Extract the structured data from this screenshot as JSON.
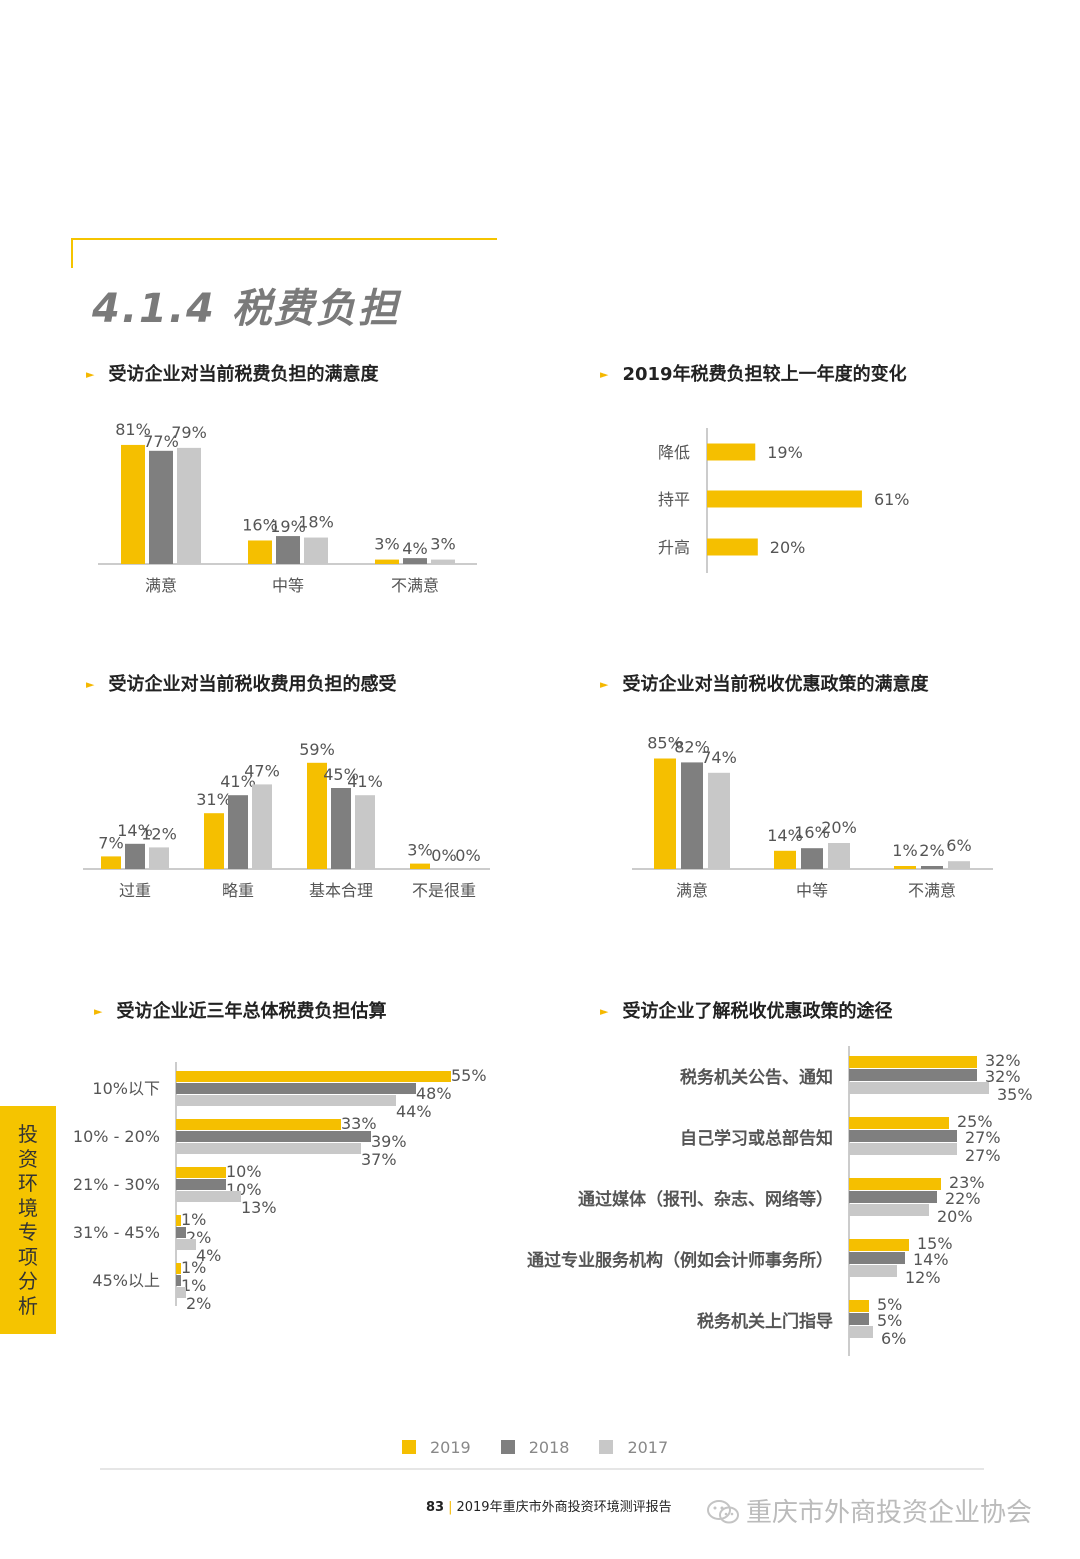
{
  "section": {
    "title": "4.1.4 税费负担"
  },
  "colors": {
    "y2019": "#f5bf00",
    "y2018": "#7f7f7f",
    "y2017": "#c8c8c8",
    "axis": "#cccccc",
    "label": "#555555"
  },
  "legend": [
    {
      "label": "2019",
      "color": "#f5bf00"
    },
    {
      "label": "2018",
      "color": "#7f7f7f"
    },
    {
      "label": "2017",
      "color": "#c8c8c8"
    }
  ],
  "side_tab": {
    "label": "投资环境专项分析"
  },
  "footer": {
    "page_number": "83",
    "report_title": "2019年重庆市外商投资环境测评报告"
  },
  "watermark": {
    "text": "重庆市外商投资企业协会"
  },
  "chart_data": [
    {
      "type": "bar",
      "title": "受访企业对当前税费负担的满意度",
      "categories": [
        "满意",
        "中等",
        "不满意"
      ],
      "series": [
        {
          "name": "2019",
          "values": [
            81,
            16,
            3
          ]
        },
        {
          "name": "2018",
          "values": [
            77,
            19,
            4
          ]
        },
        {
          "name": "2017",
          "values": [
            79,
            18,
            3
          ]
        }
      ],
      "value_labels": [
        [
          "81%",
          "77%",
          "79%"
        ],
        [
          "16%",
          "19%",
          "18%"
        ],
        [
          "3%",
          "4%",
          "3%"
        ]
      ],
      "ylim": [
        0,
        100
      ]
    },
    {
      "type": "bar",
      "orientation": "horizontal",
      "title": "2019年税费负担较上一年度的变化",
      "categories": [
        "降低",
        "持平",
        "升高"
      ],
      "values": [
        19,
        61,
        20
      ],
      "value_labels": [
        "19%",
        "61%",
        "20%"
      ],
      "xlim": [
        0,
        100
      ]
    },
    {
      "type": "bar",
      "title": "受访企业对当前税收费用负担的感受",
      "categories": [
        "过重",
        "略重",
        "基本合理",
        "不是很重"
      ],
      "series": [
        {
          "name": "2019",
          "values": [
            7,
            31,
            59,
            3
          ]
        },
        {
          "name": "2018",
          "values": [
            14,
            41,
            45,
            0
          ]
        },
        {
          "name": "2017",
          "values": [
            12,
            47,
            41,
            0
          ]
        }
      ],
      "value_labels": [
        [
          "7%",
          "14%",
          "12%"
        ],
        [
          "31%",
          "41%",
          "47%"
        ],
        [
          "59%",
          "45%",
          "41%"
        ],
        [
          "3%",
          "0%",
          "0%"
        ]
      ],
      "ylim": [
        0,
        100
      ]
    },
    {
      "type": "bar",
      "title": "受访企业对当前税收优惠政策的满意度",
      "categories": [
        "满意",
        "中等",
        "不满意"
      ],
      "series": [
        {
          "name": "2019",
          "values": [
            85,
            14,
            1
          ]
        },
        {
          "name": "2018",
          "values": [
            82,
            16,
            2
          ]
        },
        {
          "name": "2017",
          "values": [
            74,
            20,
            6
          ]
        }
      ],
      "value_labels": [
        [
          "85%",
          "82%",
          "74%"
        ],
        [
          "14%",
          "16%",
          "20%"
        ],
        [
          "1%",
          "2%",
          "6%"
        ]
      ],
      "ylim": [
        0,
        100
      ]
    },
    {
      "type": "bar",
      "orientation": "horizontal",
      "title": "受访企业近三年总体税费负担估算",
      "categories": [
        "10%以下",
        "10% - 20%",
        "21% - 30%",
        "31% - 45%",
        "45%以上"
      ],
      "series": [
        {
          "name": "2019",
          "values": [
            55,
            33,
            10,
            1,
            1
          ]
        },
        {
          "name": "2018",
          "values": [
            48,
            39,
            10,
            2,
            1
          ]
        },
        {
          "name": "2017",
          "values": [
            44,
            37,
            13,
            4,
            2
          ]
        }
      ],
      "value_labels": [
        [
          "55%",
          "48%",
          "44%"
        ],
        [
          "33%",
          "39%",
          "37%"
        ],
        [
          "10%",
          "10%",
          "13%"
        ],
        [
          "1%",
          "2%",
          "4%"
        ],
        [
          "1%",
          "1%",
          "2%"
        ]
      ],
      "xlim": [
        0,
        100
      ]
    },
    {
      "type": "bar",
      "orientation": "horizontal",
      "title": "受访企业了解税收优惠政策的途径",
      "categories": [
        "税务机关公告、通知",
        "自己学习或总部告知",
        "通过媒体（报刊、杂志、网络等）",
        "通过专业服务机构（例如会计师事务所）",
        "税务机关上门指导"
      ],
      "series": [
        {
          "name": "2019",
          "values": [
            32,
            25,
            23,
            15,
            5
          ]
        },
        {
          "name": "2018",
          "values": [
            32,
            27,
            22,
            14,
            5
          ]
        },
        {
          "name": "2017",
          "values": [
            35,
            27,
            20,
            12,
            6
          ]
        }
      ],
      "value_labels": [
        [
          "32%",
          "32%",
          "35%"
        ],
        [
          "25%",
          "27%",
          "27%"
        ],
        [
          "23%",
          "22%",
          "20%"
        ],
        [
          "15%",
          "14%",
          "12%"
        ],
        [
          "5%",
          "5%",
          "6%"
        ]
      ],
      "xlim": [
        0,
        100
      ]
    }
  ]
}
